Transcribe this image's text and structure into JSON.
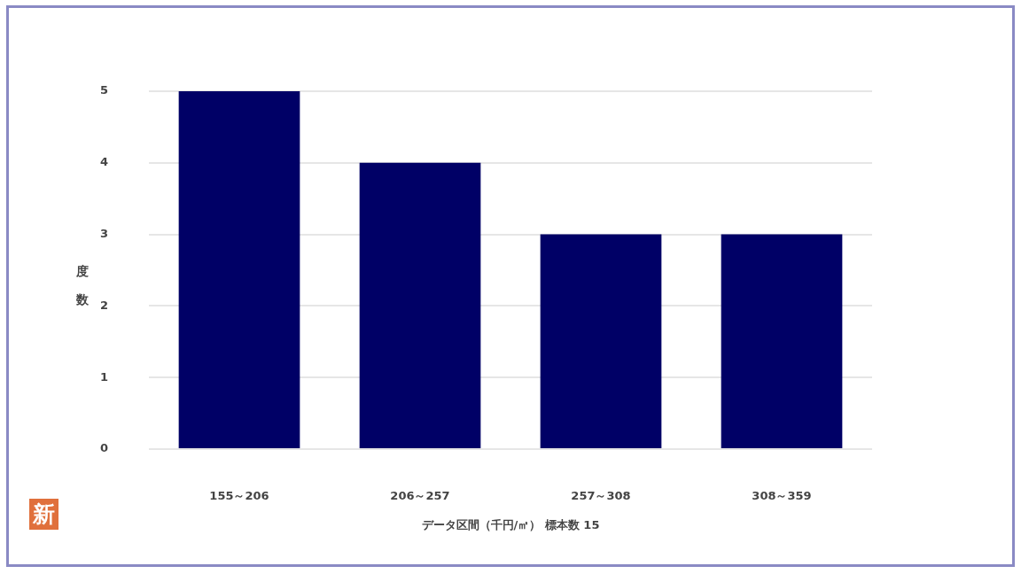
{
  "chart_data": {
    "type": "bar",
    "categories": [
      "155～206",
      "206～257",
      "257～308",
      "308～359"
    ],
    "values": [
      5,
      4,
      3,
      3
    ],
    "color": "#000066",
    "ylim": [
      0,
      5
    ],
    "yticks": [
      0,
      1,
      2,
      3,
      4,
      5
    ],
    "xlabel": "データ区間（千円/㎡） 標本数 15",
    "ylabel": "度数",
    "grid": "y",
    "annotations": [
      "新"
    ]
  }
}
